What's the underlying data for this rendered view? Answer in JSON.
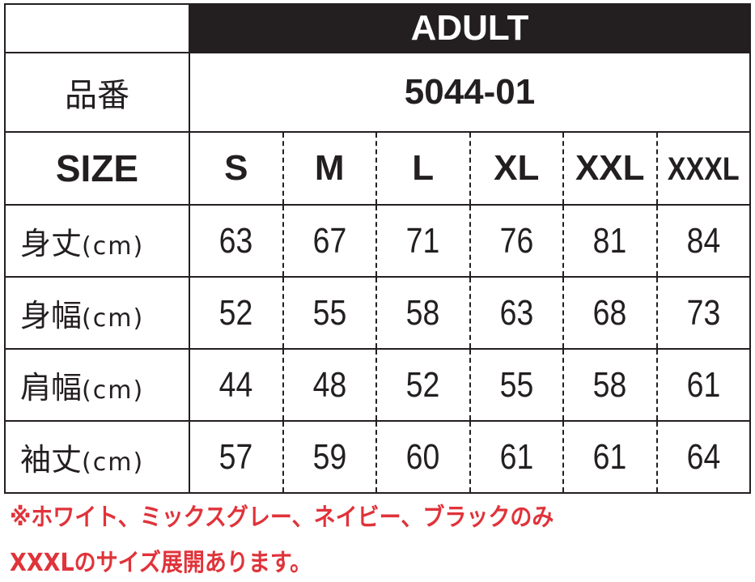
{
  "header": {
    "title": "ADULT"
  },
  "product": {
    "label": "品番",
    "code": "5044-01"
  },
  "sizes": {
    "label": "SIZE",
    "items": [
      "S",
      "M",
      "L",
      "XL",
      "XXL",
      "XXXL"
    ]
  },
  "rows": [
    {
      "label": "身丈",
      "unit": "(cm)",
      "values": [
        "63",
        "67",
        "71",
        "76",
        "81",
        "84"
      ]
    },
    {
      "label": "身幅",
      "unit": "(cm)",
      "values": [
        "52",
        "55",
        "58",
        "63",
        "68",
        "73"
      ]
    },
    {
      "label": "肩幅",
      "unit": "(cm)",
      "values": [
        "44",
        "48",
        "52",
        "55",
        "58",
        "61"
      ]
    },
    {
      "label": "袖丈",
      "unit": "(cm)",
      "values": [
        "57",
        "59",
        "60",
        "61",
        "61",
        "64"
      ]
    }
  ],
  "notes": [
    "※ホワイト、ミックスグレー、ネイビー、ブラックのみ",
    "XXXLのサイズ展開あります。"
  ],
  "colors": {
    "header_bg": "#231f20",
    "note": "#e0333a"
  }
}
